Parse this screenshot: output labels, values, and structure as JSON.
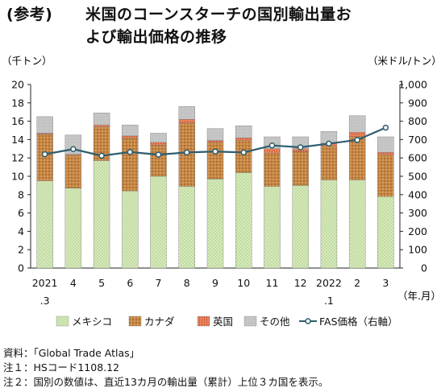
{
  "title": {
    "tag": "(参考)",
    "line1": "米国のコーンスターチの国別輸出量お",
    "line2": "よび輸出価格の推移"
  },
  "chart_data": {
    "type": "bar",
    "stacked": true,
    "left_unit": "（千トン）",
    "right_unit": "（米ドル/トン）",
    "x_unit": "（年.月）",
    "categories": [
      "2021.3",
      "4",
      "5",
      "6",
      "7",
      "8",
      "9",
      "10",
      "11",
      "12",
      "2022.1",
      "2",
      "3"
    ],
    "tick_labels": [
      [
        "2021",
        ".3"
      ],
      [
        "4",
        ""
      ],
      [
        "5",
        ""
      ],
      [
        "6",
        ""
      ],
      [
        "7",
        ""
      ],
      [
        "8",
        ""
      ],
      [
        "9",
        ""
      ],
      [
        "10",
        ""
      ],
      [
        "11",
        ""
      ],
      [
        "12",
        ""
      ],
      [
        "2022",
        ".1"
      ],
      [
        "2",
        ""
      ],
      [
        "3",
        ""
      ]
    ],
    "ylim": [
      0,
      20
    ],
    "yticks": [
      0,
      2,
      4,
      6,
      8,
      10,
      12,
      14,
      16,
      18,
      20
    ],
    "y2lim": [
      0,
      1000
    ],
    "y2ticks": [
      0,
      100,
      200,
      300,
      400,
      500,
      600,
      700,
      800,
      900,
      1000
    ],
    "y2tick_labels": [
      "0",
      "100",
      "200",
      "300",
      "400",
      "500",
      "600",
      "700",
      "800",
      "900",
      "1,000"
    ],
    "series": [
      {
        "name": "メキシコ",
        "color": "#cfe3b0",
        "pattern": "green",
        "values": [
          9.5,
          8.7,
          11.7,
          8.4,
          10.0,
          8.9,
          9.7,
          10.4,
          8.9,
          9.0,
          9.6,
          9.6,
          7.8
        ]
      },
      {
        "name": "カナダ",
        "color": "#c98844",
        "pattern": "brown",
        "values": [
          5.1,
          3.6,
          3.7,
          5.8,
          3.4,
          6.9,
          4.0,
          3.5,
          3.6,
          3.7,
          3.7,
          4.7,
          4.5
        ]
      },
      {
        "name": "英国",
        "color": "#e06a3a",
        "pattern": "red",
        "values": [
          0.1,
          0.1,
          0.2,
          0.2,
          0.3,
          0.4,
          0.2,
          0.3,
          0.5,
          0.3,
          0.3,
          0.5,
          0.3
        ]
      },
      {
        "name": "その他",
        "color": "#c3c3c3",
        "pattern": "gray",
        "values": [
          1.8,
          2.1,
          1.3,
          1.2,
          1.0,
          1.4,
          1.3,
          1.3,
          1.3,
          1.3,
          1.3,
          1.8,
          1.7
        ]
      }
    ],
    "line": {
      "name": "FAS価格（右軸）",
      "color": "#2e5d6e",
      "values": [
        620,
        648,
        612,
        632,
        618,
        630,
        635,
        630,
        668,
        658,
        678,
        698,
        765
      ]
    }
  },
  "notes": [
    "資料：「Global Trade Atlas」",
    "注１：HSコード1108.12",
    "注２：国別の数値は、直近13カ月の輸出量（累計）上位３カ国を表示。"
  ]
}
